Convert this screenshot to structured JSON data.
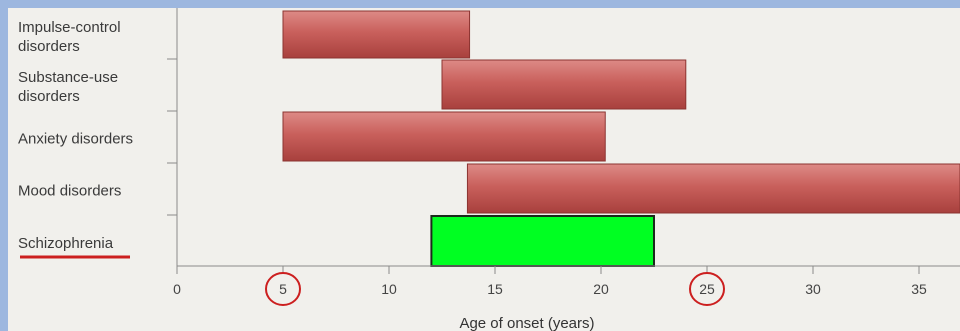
{
  "chart_data": {
    "type": "bar",
    "orientation": "horizontal-range",
    "xlabel": "Age of onset (years)",
    "xlim": [
      0,
      37
    ],
    "xticks": [
      0,
      5,
      10,
      15,
      20,
      25,
      30,
      35
    ],
    "highlighted_ticks": [
      5,
      25
    ],
    "categories": [
      [
        "Impulse-control",
        "disorders"
      ],
      [
        "Substance-use",
        "disorders"
      ],
      [
        "Anxiety disorders"
      ],
      [
        "Mood disorders"
      ],
      [
        "Schizophrenia"
      ]
    ],
    "ranges": [
      {
        "start": 5,
        "end": 13.8,
        "color": "#c0504d"
      },
      {
        "start": 12.5,
        "end": 24,
        "color": "#c0504d"
      },
      {
        "start": 5,
        "end": 20.2,
        "color": "#c0504d"
      },
      {
        "start": 13.7,
        "end": 37,
        "color": "#c0504d"
      },
      {
        "start": 12,
        "end": 22.5,
        "color": "#00ff22"
      }
    ],
    "underlined_category": "Schizophrenia",
    "annotation_color": "#cc1f1f",
    "grid": false,
    "legend": "none"
  }
}
